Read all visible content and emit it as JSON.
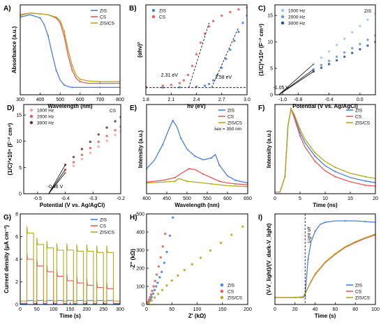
{
  "colors": {
    "zis": "#4a7fd8",
    "cs": "#e45a5a",
    "zis_cs": "#b3a91e",
    "black": "#000000"
  },
  "chart_data": [
    {
      "panel": "A)",
      "type": "line",
      "xlabel": "Wavelength (nm)",
      "ylabel": "Absorbance (a.u.)",
      "xlim": [
        300,
        800
      ],
      "xticks": [
        300,
        400,
        500,
        600,
        700,
        800
      ],
      "ylim": [
        0,
        1.1
      ],
      "yticks": [],
      "legend": "top-right",
      "series": [
        {
          "name": "ZIS",
          "color": "#4a7fd8",
          "x": [
            300,
            350,
            400,
            420,
            440,
            460,
            480,
            500,
            520,
            540,
            560,
            600,
            700,
            800
          ],
          "y": [
            0.95,
            0.98,
            0.94,
            0.86,
            0.72,
            0.5,
            0.3,
            0.18,
            0.12,
            0.1,
            0.09,
            0.09,
            0.09,
            0.09
          ]
        },
        {
          "name": "CS",
          "color": "#e45a5a",
          "x": [
            300,
            350,
            400,
            440,
            480,
            500,
            520,
            540,
            560,
            580,
            600,
            640,
            700,
            800
          ],
          "y": [
            0.98,
            1.0,
            0.99,
            0.98,
            0.94,
            0.88,
            0.72,
            0.48,
            0.3,
            0.2,
            0.16,
            0.14,
            0.14,
            0.14
          ]
        },
        {
          "name": "ZIS/CS",
          "color": "#b3a91e",
          "x": [
            300,
            350,
            400,
            440,
            480,
            500,
            520,
            540,
            560,
            580,
            600,
            640,
            700,
            800
          ],
          "y": [
            0.97,
            1.0,
            0.99,
            0.98,
            0.95,
            0.91,
            0.78,
            0.55,
            0.36,
            0.24,
            0.19,
            0.17,
            0.16,
            0.16
          ]
        }
      ]
    },
    {
      "panel": "B)",
      "type": "scatter",
      "xlabel": "hν (eV)",
      "ylabel": "(αhν)²",
      "xlim": [
        1.8,
        3.0
      ],
      "xticks": [
        "1.8",
        "2.1",
        "2.4",
        "2.7",
        "3.0"
      ],
      "ylim": [
        0,
        1.0
      ],
      "yticks": [],
      "legend": "top-left",
      "series": [
        {
          "name": "ZIS",
          "color": "#4a7fd8",
          "x": [
            1.8,
            2.0,
            2.2,
            2.4,
            2.5,
            2.55,
            2.6,
            2.65,
            2.7,
            2.75,
            2.8,
            2.85,
            2.9,
            2.95,
            3.0
          ],
          "y": [
            0.08,
            0.08,
            0.085,
            0.09,
            0.1,
            0.12,
            0.16,
            0.22,
            0.3,
            0.4,
            0.5,
            0.6,
            0.7,
            0.8,
            0.88
          ]
        },
        {
          "name": "CS",
          "color": "#e45a5a",
          "x": [
            1.8,
            2.0,
            2.1,
            2.2,
            2.25,
            2.3,
            2.35,
            2.4,
            2.45,
            2.5,
            2.55,
            2.6,
            2.7,
            2.8,
            2.9,
            3.0
          ],
          "y": [
            0.09,
            0.1,
            0.11,
            0.13,
            0.16,
            0.22,
            0.32,
            0.45,
            0.58,
            0.68,
            0.76,
            0.82,
            0.88,
            0.92,
            0.95,
            0.97
          ]
        }
      ],
      "annotations": [
        {
          "text": "2.31 eV",
          "color": "#e0241c"
        },
        {
          "text": "2.58 eV",
          "color": "#2f62c4"
        }
      ]
    },
    {
      "panel": "C)",
      "type": "scatter",
      "title": "ZIS",
      "xlabel": "Potential (V vs. Ag/AgCl)",
      "ylabel": "(1/C)²×10⁹ (F⁻² cm⁴)",
      "xlim": [
        -1.1,
        0.2
      ],
      "xticks": [
        "-1.0",
        "-0.8",
        "-0.4",
        "0.0"
      ],
      "ylim": [
        0,
        17
      ],
      "yticks": [
        "0",
        "5",
        "10",
        "15"
      ],
      "legend": "top-left",
      "series": [
        {
          "name": "1000 Hz",
          "color": "#9cc4ee",
          "x": [
            -0.6,
            -0.5,
            -0.4,
            -0.3,
            -0.2,
            -0.1,
            0.0,
            0.1,
            0.2
          ],
          "y": [
            5.8,
            7.0,
            8.2,
            9.4,
            10.6,
            11.8,
            13.0,
            14.2,
            15.4
          ]
        },
        {
          "name": "2000 Hz",
          "color": "#5f93db",
          "x": [
            -0.6,
            -0.5,
            -0.4,
            -0.3,
            -0.2,
            -0.1,
            0.0,
            0.1,
            0.2
          ],
          "y": [
            4.8,
            5.6,
            6.4,
            7.2,
            8.0,
            8.8,
            9.6,
            10.4,
            11.2
          ]
        },
        {
          "name": "3000 Hz",
          "color": "#1f4f9e",
          "x": [
            -0.6,
            -0.5,
            -0.4,
            -0.3,
            -0.2,
            -0.1,
            0.0,
            0.1,
            0.2
          ],
          "y": [
            4.4,
            5.1,
            5.8,
            6.5,
            7.2,
            7.9,
            8.6,
            9.3,
            10.0
          ]
        }
      ],
      "annotations": [
        {
          "text": "-1.05 V",
          "color": "#2f62c4"
        }
      ]
    },
    {
      "panel": "D)",
      "type": "scatter",
      "title": "CS",
      "xlabel": "Potential (V vs. Ag/AgCl)",
      "ylabel": "(1/C)²×10⁹ (F⁻² cm⁴)",
      "xlim": [
        -0.55,
        -0.2
      ],
      "xticks": [
        "-0.5",
        "-0.4",
        "-0.3",
        "-0.2"
      ],
      "ylim": [
        0,
        17
      ],
      "yticks": [
        "0",
        "5",
        "10",
        "15"
      ],
      "legend": "top-left",
      "series": [
        {
          "name": "1000 Hz",
          "color": "#f2a39d",
          "x": [
            -0.4,
            -0.37,
            -0.34,
            -0.31,
            -0.28,
            -0.25,
            -0.22,
            -0.2
          ],
          "y": [
            4.0,
            5.3,
            6.6,
            7.8,
            9.0,
            10.1,
            11.2,
            11.9
          ]
        },
        {
          "name": "2000 Hz",
          "color": "#e45a5a",
          "x": [
            -0.4,
            -0.37,
            -0.34,
            -0.31,
            -0.28,
            -0.25,
            -0.22,
            -0.2
          ],
          "y": [
            4.6,
            6.0,
            7.4,
            8.7,
            9.9,
            11.0,
            12.1,
            12.8
          ]
        },
        {
          "name": "3000 Hz",
          "color": "#6e3030",
          "x": [
            -0.4,
            -0.37,
            -0.34,
            -0.31,
            -0.28,
            -0.25,
            -0.22,
            -0.2
          ],
          "y": [
            5.5,
            7.0,
            8.5,
            9.9,
            11.3,
            12.6,
            13.8,
            14.6
          ]
        }
      ],
      "annotations": [
        {
          "text": "-0.46 V",
          "color": "#e0241c"
        }
      ]
    },
    {
      "panel": "E)",
      "type": "line",
      "xlabel": "Wavelength (nm)",
      "ylabel": "Intensity (a.u.)",
      "xlim": [
        400,
        650
      ],
      "xticks": [
        400,
        450,
        500,
        550,
        600,
        650
      ],
      "ylim": [
        0,
        1.0
      ],
      "yticks": [],
      "legend": "top-right",
      "series": [
        {
          "name": "ZIS",
          "color": "#4a7fd8",
          "x": [
            400,
            420,
            440,
            455,
            465,
            475,
            485,
            500,
            520,
            540,
            560,
            570,
            580,
            600,
            620,
            640,
            650
          ],
          "y": [
            0.28,
            0.38,
            0.55,
            0.72,
            0.82,
            0.75,
            0.62,
            0.5,
            0.42,
            0.38,
            0.4,
            0.44,
            0.32,
            0.2,
            0.15,
            0.13,
            0.12
          ]
        },
        {
          "name": "CS",
          "color": "#e45a5a",
          "x": [
            400,
            440,
            470,
            490,
            505,
            520,
            540,
            560,
            580,
            600,
            620,
            650
          ],
          "y": [
            0.13,
            0.15,
            0.18,
            0.24,
            0.28,
            0.27,
            0.22,
            0.18,
            0.14,
            0.12,
            0.11,
            0.1
          ]
        },
        {
          "name": "ZIS/CS",
          "color": "#b3a91e",
          "x": [
            400,
            440,
            470,
            480,
            500,
            520,
            560,
            600,
            650
          ],
          "y": [
            0.12,
            0.13,
            0.14,
            0.17,
            0.14,
            0.13,
            0.11,
            0.09,
            0.08
          ]
        }
      ],
      "annotations": [
        {
          "text": "λex = 350 nm"
        }
      ]
    },
    {
      "panel": "F)",
      "type": "line",
      "xlabel": "Time (ns)",
      "ylabel": "Intensity (a.u.)",
      "xlim": [
        0,
        20
      ],
      "xticks": [
        0,
        5,
        10,
        15,
        20
      ],
      "ylim": [
        0,
        1.05
      ],
      "yticks": [],
      "legend": "top-right",
      "series": [
        {
          "name": "ZIS",
          "color": "#4a7fd8",
          "x": [
            0,
            1,
            2,
            2.6,
            3.2,
            3.8,
            5,
            6,
            8,
            10,
            12,
            15,
            18,
            20
          ],
          "y": [
            0.02,
            0.02,
            0.2,
            0.8,
            1.0,
            0.92,
            0.72,
            0.6,
            0.44,
            0.33,
            0.26,
            0.19,
            0.15,
            0.13
          ]
        },
        {
          "name": "CS",
          "color": "#e45a5a",
          "x": [
            0,
            1,
            2,
            2.6,
            3.2,
            3.8,
            5,
            6,
            8,
            10,
            12,
            15,
            18,
            20
          ],
          "y": [
            0.02,
            0.02,
            0.2,
            0.8,
            1.0,
            0.9,
            0.68,
            0.55,
            0.38,
            0.27,
            0.2,
            0.14,
            0.1,
            0.09
          ]
        },
        {
          "name": "ZIS/CS",
          "color": "#b3a91e",
          "x": [
            0,
            1,
            2,
            2.6,
            3.2,
            3.8,
            5,
            6,
            8,
            10,
            12,
            15,
            18,
            20
          ],
          "y": [
            0.02,
            0.02,
            0.2,
            0.8,
            1.0,
            0.94,
            0.76,
            0.64,
            0.48,
            0.38,
            0.31,
            0.24,
            0.2,
            0.18
          ]
        }
      ]
    },
    {
      "panel": "G)",
      "type": "line",
      "xlabel": "Time (s)",
      "ylabel": "Current density (μA cm⁻²)",
      "xlim": [
        0,
        300
      ],
      "xticks": [
        0,
        50,
        100,
        150,
        200,
        250,
        300
      ],
      "ylim": [
        0,
        8
      ],
      "yticks": [
        0,
        2,
        4,
        6,
        8
      ],
      "legend": "top-right",
      "light_on_intervals": [
        [
          20,
          40
        ],
        [
          50,
          70
        ],
        [
          80,
          100
        ],
        [
          110,
          130
        ],
        [
          140,
          160
        ],
        [
          170,
          190
        ],
        [
          200,
          220
        ],
        [
          230,
          250
        ],
        [
          260,
          280
        ]
      ],
      "series": [
        {
          "name": "ZIS",
          "color": "#4a7fd8",
          "on_levels": [
            0.35,
            0.35,
            0.35,
            0.35,
            0.35,
            0.35,
            0.35,
            0.35,
            0.35
          ],
          "off_level": 0.05
        },
        {
          "name": "CS",
          "color": "#e45a5a",
          "on_levels": [
            4.0,
            3.4,
            2.9,
            2.5,
            2.1,
            1.9,
            1.7,
            1.5,
            1.4
          ],
          "off_level": 0.1
        },
        {
          "name": "ZIS/CS",
          "color": "#b3a91e",
          "on_levels": [
            6.3,
            5.3,
            5.0,
            4.8,
            4.8,
            4.7,
            4.7,
            4.6,
            4.6
          ],
          "off_level": 0.3
        }
      ]
    },
    {
      "panel": "H)",
      "type": "scatter",
      "xlabel": "Z' (kΩ)",
      "ylabel": "-Z'' (kΩ)",
      "xlim": [
        0,
        200
      ],
      "xticks": [
        0,
        50,
        100,
        150,
        200
      ],
      "ylim": [
        0,
        500
      ],
      "yticks": [
        0,
        100,
        200,
        300,
        400,
        500
      ],
      "legend": "bottom-right",
      "series": [
        {
          "name": "ZIS",
          "color": "#4a7fd8",
          "x": [
            2,
            4,
            6,
            8,
            10,
            13,
            16,
            19,
            22,
            26,
            30,
            35,
            40,
            46,
            52
          ],
          "y": [
            5,
            12,
            20,
            30,
            42,
            60,
            80,
            100,
            120,
            150,
            180,
            230,
            290,
            380,
            480
          ]
        },
        {
          "name": "CS",
          "color": "#e45a5a",
          "x": [
            2,
            3,
            5,
            7,
            9,
            11,
            14,
            17,
            20,
            24,
            28,
            32,
            37
          ],
          "y": [
            6,
            14,
            26,
            40,
            55,
            75,
            100,
            130,
            165,
            210,
            260,
            320,
            390
          ]
        },
        {
          "name": "ZIS/CS",
          "color": "#b3a91e",
          "x": [
            2,
            5,
            10,
            16,
            23,
            31,
            40,
            50,
            62,
            75,
            90,
            107,
            126,
            147,
            168,
            190
          ],
          "y": [
            4,
            10,
            22,
            38,
            58,
            80,
            105,
            132,
            160,
            190,
            222,
            258,
            298,
            340,
            385,
            430
          ]
        }
      ]
    },
    {
      "panel": "I)",
      "type": "line",
      "xlabel": "Time (s)",
      "ylabel": "(V-V_light)/(V_dark-V_light)",
      "xlim": [
        0,
        100
      ],
      "xticks": [
        0,
        20,
        40,
        60,
        80,
        100
      ],
      "ylim": [
        -0.1,
        1.2
      ],
      "yticks": [],
      "legend": "bottom-right",
      "vline_x": 30,
      "series": [
        {
          "name": "ZIS",
          "color": "#4a7fd8",
          "x": [
            0,
            10,
            20,
            28,
            30,
            31,
            33,
            36,
            40,
            45,
            50,
            60,
            70,
            80,
            90,
            100
          ],
          "y": [
            0,
            0,
            0,
            0,
            0.02,
            0.2,
            0.55,
            0.8,
            0.95,
            1.05,
            1.08,
            1.1,
            1.1,
            1.1,
            1.09,
            1.08
          ]
        },
        {
          "name": "CS",
          "color": "#e45a5a",
          "x": [
            0,
            10,
            20,
            28,
            30,
            35,
            40,
            50,
            60,
            70,
            80,
            90,
            100
          ],
          "y": [
            0,
            0,
            0,
            0.01,
            0.05,
            0.2,
            0.33,
            0.5,
            0.62,
            0.72,
            0.79,
            0.85,
            0.9
          ]
        },
        {
          "name": "ZIS/CS",
          "color": "#b3a91e",
          "x": [
            0,
            10,
            20,
            28,
            30,
            35,
            40,
            50,
            60,
            70,
            80,
            90,
            100
          ],
          "y": [
            0,
            0,
            0,
            0.01,
            0.05,
            0.21,
            0.34,
            0.51,
            0.63,
            0.73,
            0.8,
            0.86,
            0.91
          ]
        }
      ],
      "annotations": [
        {
          "text": "Light off"
        }
      ]
    }
  ]
}
